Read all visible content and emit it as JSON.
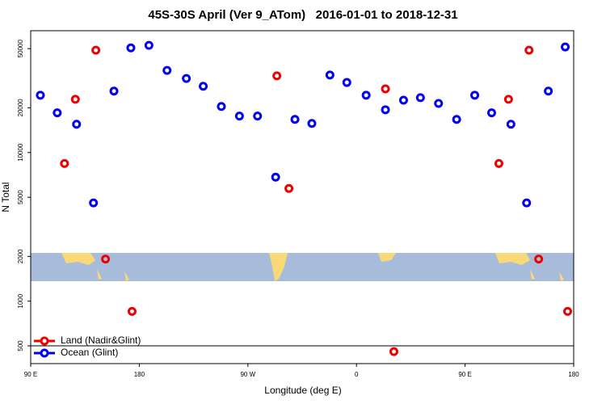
{
  "chart_data": {
    "type": "scatter",
    "title": "45S-30S April (Ver 9_ATom)   2016-01-01 to 2018-12-31",
    "x_label": "Longitude (deg E)",
    "y_label": "N Total",
    "log_y": true,
    "xlim": [
      90,
      540
    ],
    "ylim": [
      380,
      66000
    ],
    "xticks": [
      {
        "value": 90,
        "label": "90 E"
      },
      {
        "value": 180,
        "label": "180"
      },
      {
        "value": 270,
        "label": "90 W"
      },
      {
        "value": 360,
        "label": "0"
      },
      {
        "value": 450,
        "label": "90 E"
      },
      {
        "value": 540,
        "label": "180"
      }
    ],
    "yticks": [
      500,
      1000,
      2000,
      5000,
      10000,
      20000,
      50000
    ],
    "legend": "bottom-left",
    "series": [
      {
        "name": "Land (Nadir&Glint)",
        "color": "#ee0000",
        "x": [
          118,
          127,
          144,
          152,
          174,
          294,
          304,
          384,
          391,
          478,
          486,
          503,
          511,
          535
        ],
        "values": [
          8430,
          22800,
          48800,
          1920,
          853,
          32800,
          5730,
          26800,
          458,
          8430,
          22800,
          48800,
          1920,
          853
        ]
      },
      {
        "name": "Ocean (Glint)",
        "color": "#0000ee",
        "x": [
          98,
          112,
          128,
          142,
          159,
          173,
          188,
          203,
          219,
          233,
          248,
          263,
          278,
          293,
          309,
          323,
          338,
          352,
          368,
          384,
          399,
          413,
          428,
          443,
          458,
          472,
          488,
          501,
          519,
          533
        ],
        "values": [
          24300,
          18500,
          15500,
          4580,
          25900,
          50600,
          52600,
          35700,
          31500,
          27900,
          20400,
          17600,
          17600,
          6830,
          16700,
          15700,
          33200,
          29600,
          24300,
          19400,
          22500,
          23400,
          21400,
          16700,
          24300,
          18500,
          15500,
          4580,
          25900,
          51300
        ]
      }
    ]
  }
}
